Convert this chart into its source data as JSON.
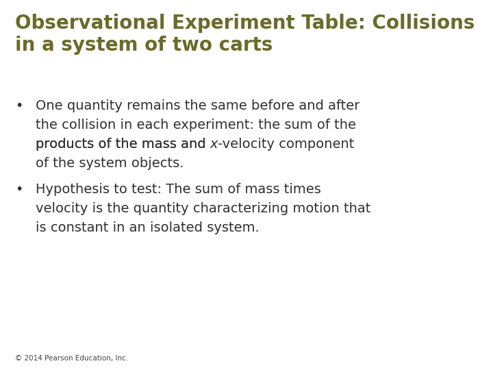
{
  "background_color": "#ffffff",
  "title_line1": "Observational Experiment Table: Collisions",
  "title_line2": "in a system of two carts",
  "title_color": "#6b6b2a",
  "title_fontsize": 20,
  "bullet_color": "#303030",
  "bullet_fontsize": 14,
  "footer": "© 2014 Pearson Education, Inc.",
  "footer_fontsize": 7.5,
  "footer_color": "#404040"
}
